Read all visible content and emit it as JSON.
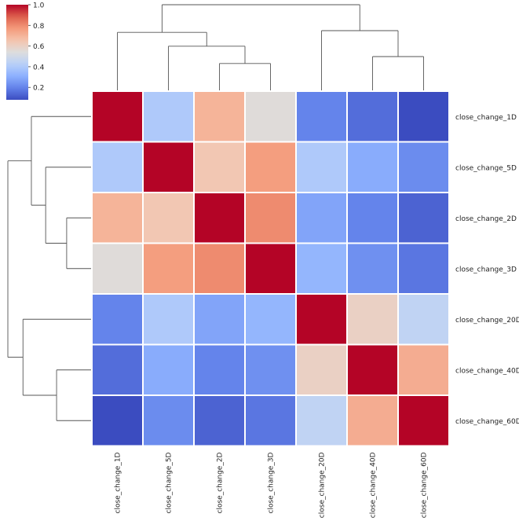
{
  "chart_data": {
    "type": "heatmap",
    "variant": "clustermap",
    "rows": [
      "close_change_1D",
      "close_change_5D",
      "close_change_2D",
      "close_change_3D",
      "close_change_20D",
      "close_change_40D",
      "close_change_60D"
    ],
    "columns": [
      "close_change_1D",
      "close_change_5D",
      "close_change_2D",
      "close_change_3D",
      "close_change_20D",
      "close_change_40D",
      "close_change_60D"
    ],
    "values": [
      [
        1.0,
        0.4,
        0.7,
        0.55,
        0.2,
        0.15,
        0.08
      ],
      [
        0.4,
        1.0,
        0.64,
        0.76,
        0.4,
        0.3,
        0.22
      ],
      [
        0.7,
        0.64,
        1.0,
        0.8,
        0.28,
        0.2,
        0.13
      ],
      [
        0.55,
        0.76,
        0.8,
        1.0,
        0.33,
        0.23,
        0.17
      ],
      [
        0.2,
        0.4,
        0.28,
        0.33,
        1.0,
        0.6,
        0.45
      ],
      [
        0.15,
        0.3,
        0.2,
        0.23,
        0.6,
        1.0,
        0.72
      ],
      [
        0.08,
        0.22,
        0.13,
        0.17,
        0.45,
        0.72,
        1.0
      ]
    ],
    "colormap": "coolwarm",
    "vmin": 0.08,
    "vmax": 1.0,
    "colorbar": {
      "ticks": [
        0.2,
        0.4,
        0.6,
        0.8,
        1.0
      ],
      "tick_labels": [
        "0.2",
        "0.4",
        "0.6",
        "0.8",
        "1.0"
      ]
    },
    "row_dendrogram": [
      {
        "a": "close_change_2D",
        "b": "close_change_3D"
      },
      {
        "a": "close_change_5D",
        "b": "node0"
      },
      {
        "a": "close_change_1D",
        "b": "node1"
      },
      {
        "a": "close_change_40D",
        "b": "close_change_60D"
      },
      {
        "a": "close_change_20D",
        "b": "node3"
      },
      {
        "a": "node2",
        "b": "node4"
      }
    ],
    "row_dendrogram_heights": [
      0.3,
      0.55,
      0.72,
      0.42,
      0.82,
      1.0
    ],
    "col_dendrogram": [
      {
        "a": "close_change_2D",
        "b": "close_change_3D"
      },
      {
        "a": "close_change_5D",
        "b": "node0"
      },
      {
        "a": "close_change_1D",
        "b": "node1"
      },
      {
        "a": "close_change_40D",
        "b": "close_change_60D"
      },
      {
        "a": "close_change_20D",
        "b": "node3"
      },
      {
        "a": "node2",
        "b": "node4"
      }
    ],
    "col_dendrogram_heights": [
      0.32,
      0.52,
      0.68,
      0.4,
      0.7,
      1.0
    ],
    "colors": {
      "line": "#555555",
      "gridline": "#ffffff"
    }
  }
}
